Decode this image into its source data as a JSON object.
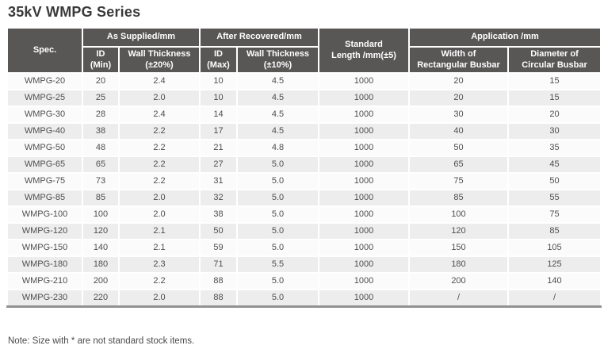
{
  "title": "35kV WMPG Series",
  "note": "Note: Size with * are not standard stock items.",
  "colors": {
    "header_bg": "#595656",
    "header_text": "#ffffff",
    "row_odd": "#fbfbfb",
    "row_even": "#ededed",
    "body_text": "#4e4e4e",
    "bottom_rule": "#929292",
    "title_text": "#3a3a3a"
  },
  "table": {
    "header": {
      "spec": "Spec.",
      "as_supplied": "As Supplied/mm",
      "after_recovered": "After Recovered/mm",
      "standard_length": "Standard\nLength /mm(±5)",
      "application": "Application /mm",
      "id_min": "ID\n(Min)",
      "wall_thickness_20": "Wall Thickness\n(±20%)",
      "id_max": "ID\n(Max)",
      "wall_thickness_10": "Wall Thickness\n(±10%)",
      "width_rect_busbar": "Width of\nRectangular Busbar",
      "dia_circ_busbar": "Diameter of\nCircular Busbar"
    },
    "rows": [
      [
        "WMPG-20",
        "20",
        "2.4",
        "10",
        "4.5",
        "1000",
        "20",
        "15"
      ],
      [
        "WMPG-25",
        "25",
        "2.0",
        "10",
        "4.5",
        "1000",
        "20",
        "15"
      ],
      [
        "WMPG-30",
        "28",
        "2.4",
        "14",
        "4.5",
        "1000",
        "30",
        "20"
      ],
      [
        "WMPG-40",
        "38",
        "2.2",
        "17",
        "4.5",
        "1000",
        "40",
        "30"
      ],
      [
        "WMPG-50",
        "48",
        "2.2",
        "21",
        "4.8",
        "1000",
        "50",
        "35"
      ],
      [
        "WMPG-65",
        "65",
        "2.2",
        "27",
        "5.0",
        "1000",
        "65",
        "45"
      ],
      [
        "WMPG-75",
        "73",
        "2.2",
        "31",
        "5.0",
        "1000",
        "75",
        "50"
      ],
      [
        "WMPG-85",
        "85",
        "2.0",
        "32",
        "5.0",
        "1000",
        "85",
        "55"
      ],
      [
        "WMPG-100",
        "100",
        "2.0",
        "38",
        "5.0",
        "1000",
        "100",
        "75"
      ],
      [
        "WMPG-120",
        "120",
        "2.1",
        "50",
        "5.0",
        "1000",
        "120",
        "85"
      ],
      [
        "WMPG-150",
        "140",
        "2.1",
        "59",
        "5.0",
        "1000",
        "150",
        "105"
      ],
      [
        "WMPG-180",
        "180",
        "2.3",
        "71",
        "5.5",
        "1000",
        "180",
        "125"
      ],
      [
        "WMPG-210",
        "200",
        "2.2",
        "88",
        "5.0",
        "1000",
        "200",
        "140"
      ],
      [
        "WMPG-230",
        "220",
        "2.0",
        "88",
        "5.0",
        "1000",
        "/",
        "/"
      ]
    ]
  }
}
